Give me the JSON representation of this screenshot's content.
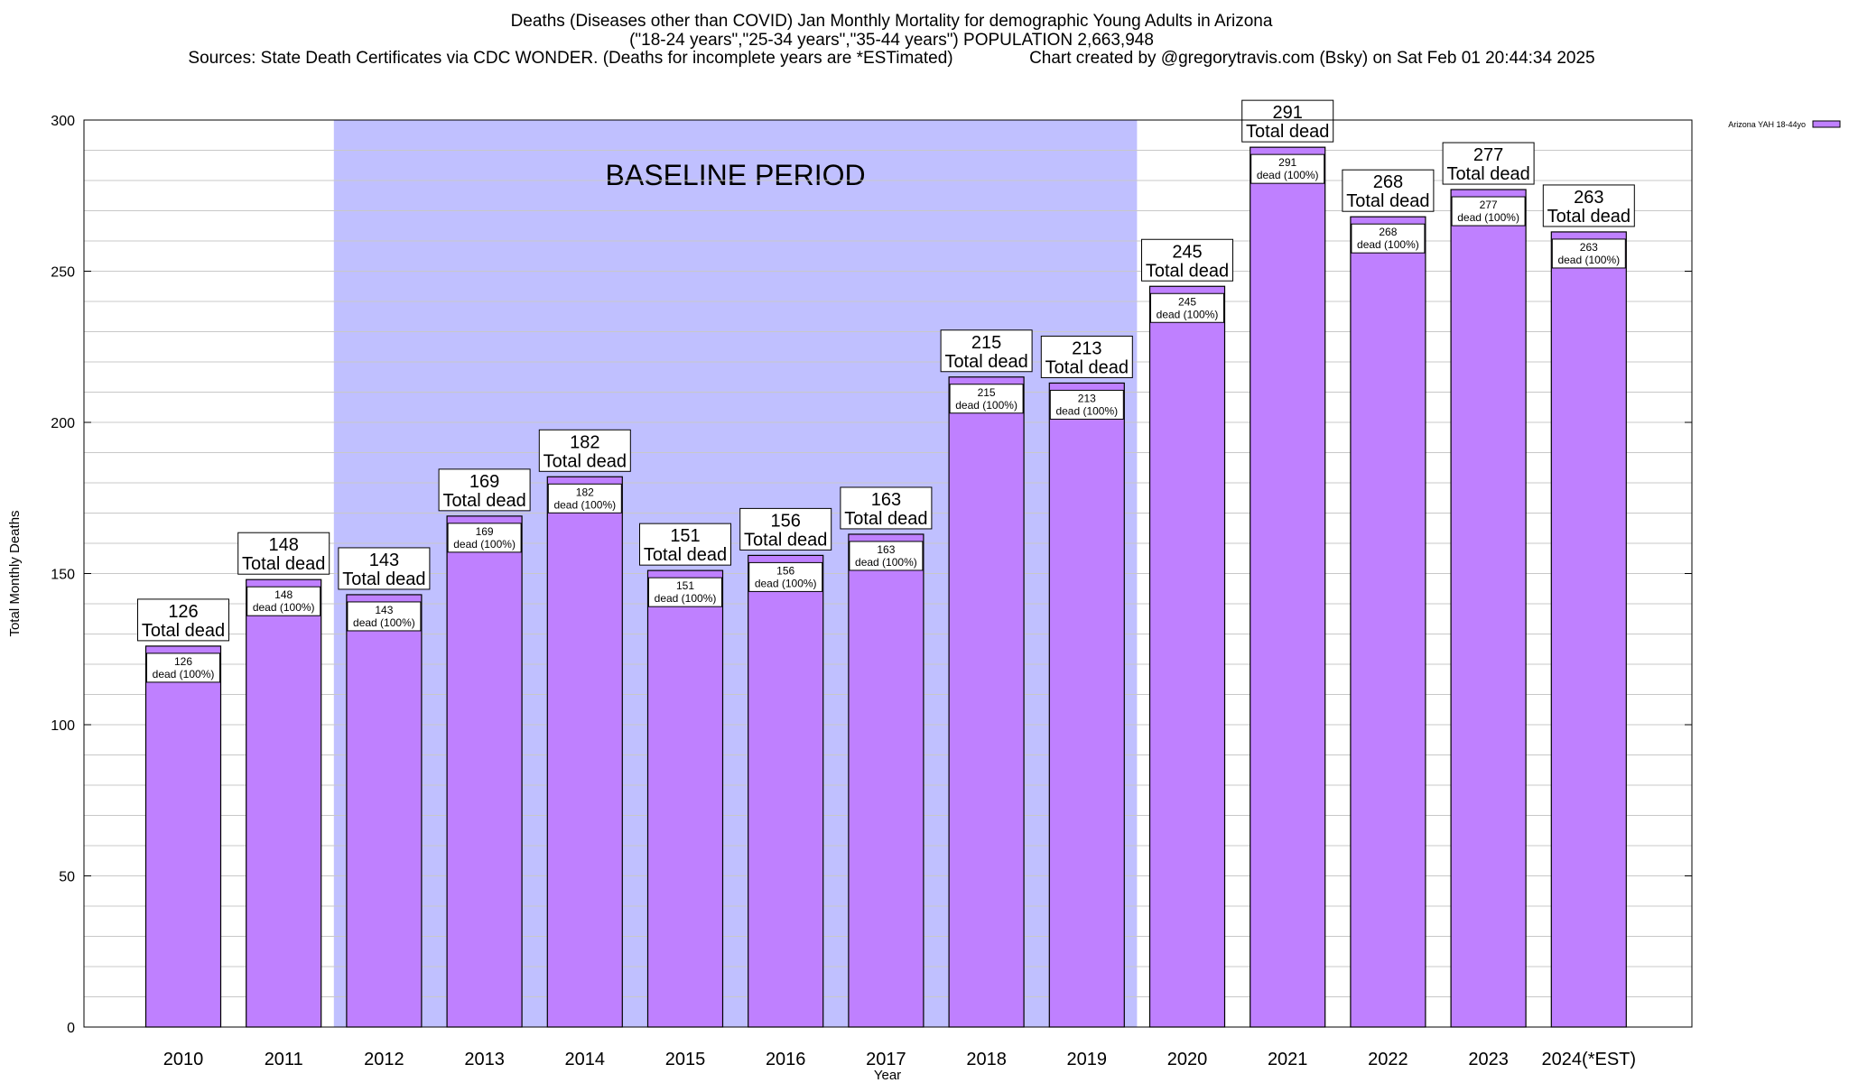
{
  "chart_data": {
    "type": "bar",
    "title": "Deaths (Diseases other than COVID) Jan Monthly Mortality for demographic Young Adults in Arizona",
    "subtitle": "(\"18-24 years\",\"25-34 years\",\"35-44 years\") POPULATION 2,663,948",
    "sources": "Sources: State Death Certificates via CDC WONDER. (Deaths for incomplete years are *ESTimated)",
    "credit": "Chart created by @gregorytravis.com (Bsky) on Sat Feb 01 20:44:34 2025",
    "xlabel": "Year",
    "ylabel": "Total Monthly Deaths",
    "ylim": [
      0,
      300
    ],
    "yticks": [
      0,
      50,
      100,
      150,
      200,
      250,
      300
    ],
    "y_minor_step": 10,
    "grid": true,
    "legend_position": "top-right",
    "categories": [
      "2010",
      "2011",
      "2012",
      "2013",
      "2014",
      "2015",
      "2016",
      "2017",
      "2018",
      "2019",
      "2020",
      "2021",
      "2022",
      "2023",
      "2024(*EST)"
    ],
    "series": [
      {
        "name": "Arizona YAH 18-44yo",
        "color": "#bf80ff",
        "values": [
          126,
          148,
          143,
          169,
          182,
          151,
          156,
          163,
          215,
          213,
          245,
          291,
          268,
          277,
          263
        ]
      }
    ],
    "total_label_suffix": "Total dead",
    "inner_label_suffix": "dead (100%)",
    "baseline_period": {
      "label": "BASELINE PERIOD",
      "start_category": "2012",
      "end_category": "2019",
      "color": "#c0c0ff"
    }
  }
}
